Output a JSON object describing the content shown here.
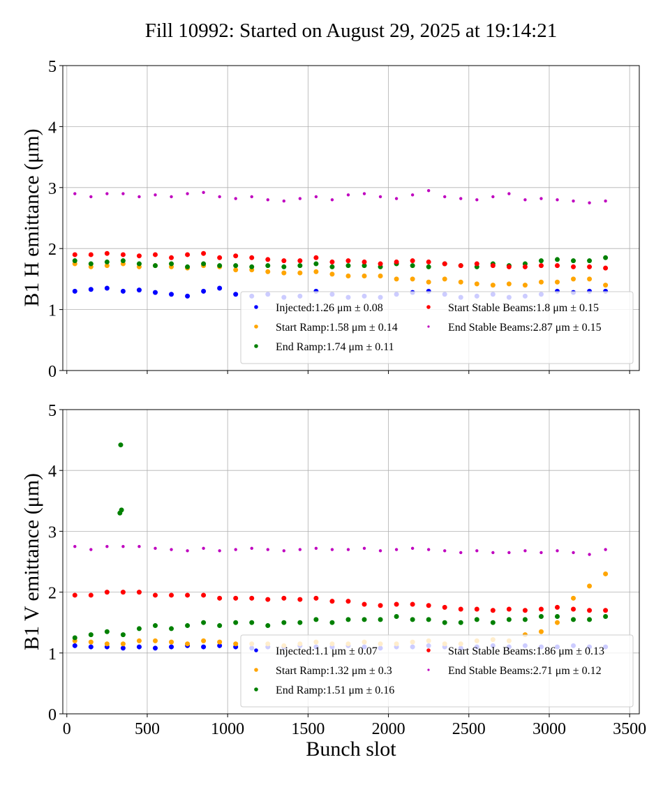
{
  "title": "Fill 10992: Started on August 29, 2025 at 19:14:21",
  "colors": {
    "Injected": "#0000ff",
    "Start Ramp": "#ffa500",
    "End Ramp": "#008000",
    "Start Stable Beams": "#ff0000",
    "End Stable Beams": "#bf00bf"
  },
  "chart_data": [
    {
      "type": "scatter",
      "ylabel": "B1 H emittance (μm)",
      "xlabel": "",
      "xlim": [
        -25,
        3560
      ],
      "ylim": [
        0,
        5
      ],
      "xticks": [
        "0",
        "500",
        "1000",
        "1500",
        "2000",
        "2500",
        "3000",
        "3500"
      ],
      "yticks": [
        "0",
        "1",
        "2",
        "3",
        "4",
        "5"
      ],
      "grid": true,
      "legend_position": "lower-right",
      "x": [
        50,
        150,
        250,
        350,
        450,
        550,
        650,
        750,
        850,
        950,
        1050,
        1150,
        1250,
        1350,
        1450,
        1550,
        1650,
        1750,
        1850,
        1950,
        2050,
        2150,
        2250,
        2350,
        2450,
        2550,
        2650,
        2750,
        2850,
        2950,
        3050,
        3150,
        3250,
        3350
      ],
      "series": [
        {
          "name": "Injected",
          "legend": "Injected:1.26 μm ± 0.08",
          "values": [
            1.3,
            1.33,
            1.35,
            1.3,
            1.32,
            1.28,
            1.25,
            1.22,
            1.3,
            1.35,
            1.25,
            1.22,
            1.25,
            1.2,
            1.22,
            1.3,
            1.25,
            1.2,
            1.22,
            1.2,
            1.25,
            1.28,
            1.3,
            1.25,
            1.2,
            1.22,
            1.25,
            1.2,
            1.22,
            1.25,
            1.3,
            1.28,
            1.3,
            1.3
          ]
        },
        {
          "name": "Start Ramp",
          "legend": "Start Ramp:1.58 μm ± 0.14",
          "values": [
            1.75,
            1.7,
            1.72,
            1.75,
            1.7,
            1.72,
            1.7,
            1.68,
            1.72,
            1.7,
            1.65,
            1.65,
            1.62,
            1.6,
            1.6,
            1.62,
            1.58,
            1.55,
            1.55,
            1.55,
            1.5,
            1.5,
            1.45,
            1.5,
            1.45,
            1.42,
            1.4,
            1.42,
            1.4,
            1.45,
            1.45,
            1.5,
            1.5,
            1.4
          ]
        },
        {
          "name": "End Ramp",
          "legend": "End Ramp:1.74 μm ± 0.11",
          "values": [
            1.8,
            1.75,
            1.78,
            1.8,
            1.75,
            1.72,
            1.75,
            1.7,
            1.75,
            1.72,
            1.72,
            1.7,
            1.72,
            1.7,
            1.72,
            1.75,
            1.7,
            1.72,
            1.72,
            1.7,
            1.75,
            1.72,
            1.7,
            1.75,
            1.72,
            1.7,
            1.75,
            1.72,
            1.75,
            1.8,
            1.82,
            1.8,
            1.8,
            1.85
          ]
        },
        {
          "name": "Start Stable Beams",
          "legend": "Start Stable Beams:1.8 μm ± 0.15",
          "values": [
            1.9,
            1.9,
            1.92,
            1.9,
            1.88,
            1.9,
            1.85,
            1.9,
            1.92,
            1.85,
            1.88,
            1.85,
            1.82,
            1.8,
            1.8,
            1.85,
            1.78,
            1.8,
            1.78,
            1.75,
            1.78,
            1.8,
            1.78,
            1.75,
            1.72,
            1.75,
            1.72,
            1.7,
            1.7,
            1.72,
            1.72,
            1.7,
            1.7,
            1.68
          ]
        },
        {
          "name": "End Stable Beams",
          "legend": "End Stable Beams:2.87 μm ± 0.15",
          "values": [
            2.9,
            2.85,
            2.9,
            2.9,
            2.85,
            2.88,
            2.85,
            2.9,
            2.92,
            2.85,
            2.82,
            2.85,
            2.8,
            2.78,
            2.82,
            2.85,
            2.8,
            2.88,
            2.9,
            2.85,
            2.82,
            2.88,
            2.95,
            2.85,
            2.82,
            2.8,
            2.85,
            2.9,
            2.8,
            2.82,
            2.8,
            2.78,
            2.75,
            2.78
          ]
        }
      ]
    },
    {
      "type": "scatter",
      "ylabel": "B1 V emittance (μm)",
      "xlabel": "Bunch slot",
      "xlim": [
        -25,
        3560
      ],
      "ylim": [
        0,
        5
      ],
      "xticks": [
        "0",
        "500",
        "1000",
        "1500",
        "2000",
        "2500",
        "3000",
        "3500"
      ],
      "yticks": [
        "0",
        "1",
        "2",
        "3",
        "4",
        "5"
      ],
      "grid": true,
      "legend_position": "lower-right",
      "x": [
        50,
        150,
        250,
        350,
        450,
        550,
        650,
        750,
        850,
        950,
        1050,
        1150,
        1250,
        1350,
        1450,
        1550,
        1650,
        1750,
        1850,
        1950,
        2050,
        2150,
        2250,
        2350,
        2450,
        2550,
        2650,
        2750,
        2850,
        2950,
        3050,
        3150,
        3250,
        3350
      ],
      "series": [
        {
          "name": "Injected",
          "legend": "Injected:1.1 μm ± 0.07",
          "values": [
            1.12,
            1.1,
            1.1,
            1.08,
            1.1,
            1.08,
            1.1,
            1.12,
            1.1,
            1.12,
            1.1,
            1.08,
            1.1,
            1.1,
            1.12,
            1.1,
            1.1,
            1.12,
            1.1,
            1.08,
            1.1,
            1.1,
            1.12,
            1.1,
            1.08,
            1.1,
            1.12,
            1.1,
            1.12,
            1.1,
            1.1,
            1.12,
            1.1,
            1.1
          ]
        },
        {
          "name": "Start Ramp",
          "legend": "Start Ramp:1.32 μm ± 0.3",
          "values": [
            1.2,
            1.18,
            1.15,
            1.15,
            1.2,
            1.2,
            1.18,
            1.15,
            1.2,
            1.18,
            1.15,
            1.15,
            1.15,
            1.12,
            1.15,
            1.18,
            1.15,
            1.15,
            1.18,
            1.15,
            1.15,
            1.18,
            1.2,
            1.15,
            1.15,
            1.2,
            1.22,
            1.2,
            1.3,
            1.35,
            1.5,
            1.9,
            2.1,
            2.3
          ]
        },
        {
          "name": "End Ramp",
          "legend": "End Ramp:1.51 μm ± 0.16",
          "values": [
            1.25,
            1.3,
            1.35,
            1.3,
            1.4,
            1.45,
            1.4,
            1.45,
            1.5,
            1.45,
            1.5,
            1.5,
            1.45,
            1.5,
            1.5,
            1.55,
            1.5,
            1.55,
            1.55,
            1.55,
            1.6,
            1.55,
            1.55,
            1.5,
            1.5,
            1.55,
            1.5,
            1.55,
            1.55,
            1.6,
            1.6,
            1.55,
            1.55,
            1.6
          ],
          "outliers": [
            [
              335,
              4.42
            ],
            [
              330,
              3.3
            ],
            [
              340,
              3.35
            ]
          ]
        },
        {
          "name": "Start Stable Beams",
          "legend": "Start Stable Beams:1.86 μm ± 0.13",
          "values": [
            1.95,
            1.95,
            2.0,
            2.0,
            2.0,
            1.95,
            1.95,
            1.95,
            1.95,
            1.9,
            1.9,
            1.9,
            1.88,
            1.9,
            1.88,
            1.9,
            1.85,
            1.85,
            1.8,
            1.78,
            1.8,
            1.8,
            1.78,
            1.75,
            1.72,
            1.72,
            1.7,
            1.72,
            1.7,
            1.72,
            1.75,
            1.72,
            1.7,
            1.7
          ]
        },
        {
          "name": "End Stable Beams",
          "legend": "End Stable Beams:2.71 μm ± 0.12",
          "values": [
            2.75,
            2.7,
            2.75,
            2.75,
            2.75,
            2.72,
            2.7,
            2.68,
            2.72,
            2.68,
            2.7,
            2.72,
            2.7,
            2.68,
            2.7,
            2.72,
            2.7,
            2.7,
            2.72,
            2.68,
            2.7,
            2.72,
            2.7,
            2.68,
            2.65,
            2.68,
            2.65,
            2.65,
            2.68,
            2.65,
            2.68,
            2.65,
            2.62,
            2.7
          ]
        }
      ]
    }
  ]
}
